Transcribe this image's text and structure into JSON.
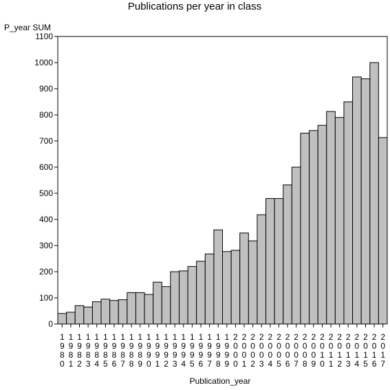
{
  "chart_data": {
    "type": "bar",
    "title": "Publications per year in class",
    "ylabel": "P_year SUM",
    "xlabel": "Publication_year",
    "ylim": [
      0,
      1100
    ],
    "yticks": [
      0,
      100,
      200,
      300,
      400,
      500,
      600,
      700,
      800,
      900,
      1000,
      1100
    ],
    "grid": false,
    "colors": {
      "bar_fill": "#c0c0c0",
      "bar_stroke": "#000000",
      "axis": "#000000",
      "background": "#ffffff"
    },
    "categories": [
      "1980",
      "1981",
      "1982",
      "1983",
      "1984",
      "1985",
      "1986",
      "1987",
      "1988",
      "1989",
      "1990",
      "1991",
      "1992",
      "1993",
      "1994",
      "1995",
      "1996",
      "1997",
      "1998",
      "1999",
      "2000",
      "2001",
      "2002",
      "2003",
      "2004",
      "2005",
      "2006",
      "2007",
      "2008",
      "2009",
      "2010",
      "2011",
      "2012",
      "2013",
      "2014",
      "2015",
      "2016",
      "2017"
    ],
    "values": [
      40,
      45,
      70,
      65,
      85,
      95,
      90,
      93,
      120,
      120,
      113,
      160,
      143,
      200,
      203,
      220,
      240,
      268,
      360,
      277,
      282,
      348,
      318,
      418,
      480,
      480,
      532,
      600,
      730,
      740,
      760,
      813,
      790,
      850,
      945,
      938,
      1000,
      713
    ]
  }
}
